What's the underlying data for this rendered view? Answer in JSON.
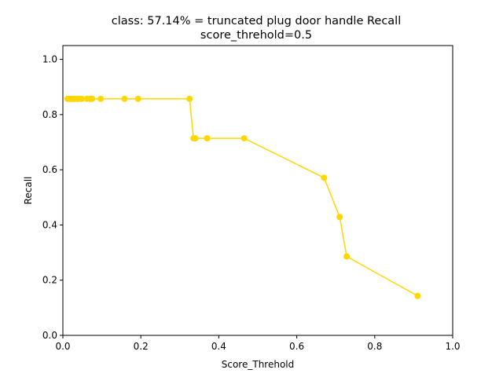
{
  "chart_data": {
    "type": "line",
    "title_line1": "class: 57.14% = truncated plug door handle Recall",
    "title_line2": "score_threhold=0.5",
    "xlabel": "Score_Threhold",
    "ylabel": "Recall",
    "xlim": [
      0.0,
      1.0
    ],
    "ylim": [
      0.0,
      1.05
    ],
    "xticks": [
      "0.0",
      "0.2",
      "0.4",
      "0.6",
      "0.8",
      "1.0"
    ],
    "yticks": [
      "0.0",
      "0.2",
      "0.4",
      "0.6",
      "0.8",
      "1.0"
    ],
    "grid": false,
    "color": "#FFD700",
    "x": [
      0.012,
      0.016,
      0.02,
      0.025,
      0.03,
      0.035,
      0.04,
      0.048,
      0.062,
      0.07,
      0.075,
      0.097,
      0.158,
      0.193,
      0.325,
      0.335,
      0.34,
      0.37,
      0.465,
      0.67,
      0.71,
      0.728,
      0.91
    ],
    "y": [
      0.857,
      0.857,
      0.857,
      0.857,
      0.857,
      0.857,
      0.857,
      0.857,
      0.857,
      0.857,
      0.857,
      0.857,
      0.857,
      0.857,
      0.857,
      0.714,
      0.714,
      0.714,
      0.714,
      0.571,
      0.429,
      0.286,
      0.143
    ]
  }
}
